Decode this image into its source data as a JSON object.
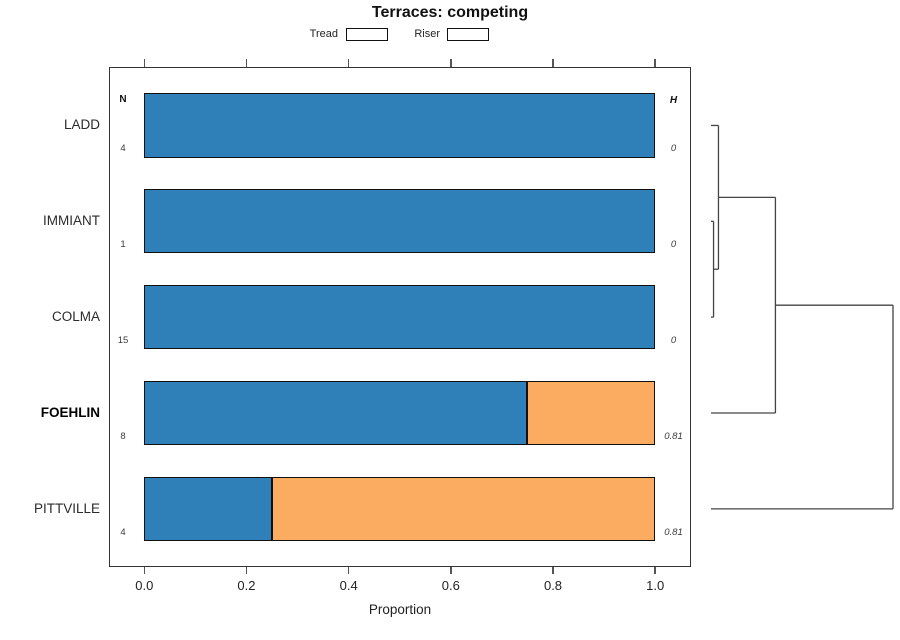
{
  "title": "Terraces: competing",
  "colors": {
    "tread": "#2F80B9",
    "riser": "#FBAC61",
    "bar_border": "#111111",
    "dendrogram_line": "#444444"
  },
  "legend": {
    "items": [
      {
        "label": "Tread",
        "color_key": "tread"
      },
      {
        "label": "Riser",
        "color_key": "riser"
      }
    ]
  },
  "columns": {
    "n_header": "N",
    "h_header": "H"
  },
  "xaxis": {
    "label": "Proportion",
    "ticks": [
      {
        "v": 0.0,
        "label": "0.0"
      },
      {
        "v": 0.2,
        "label": "0.2"
      },
      {
        "v": 0.4,
        "label": "0.4"
      },
      {
        "v": 0.6,
        "label": "0.6"
      },
      {
        "v": 0.8,
        "label": "0.8"
      },
      {
        "v": 1.0,
        "label": "1.0"
      }
    ]
  },
  "chart_data": {
    "type": "bar",
    "variant": "horizontal-stacked-proportion",
    "title": "Terraces: competing",
    "xlabel": "Proportion",
    "xlim": [
      0,
      1
    ],
    "legend_position": "top",
    "categories": [
      "LADD",
      "IMMIANT",
      "COLMA",
      "FOEHLIN",
      "PITTVILLE"
    ],
    "bold_categories": [
      "FOEHLIN"
    ],
    "series": [
      {
        "name": "Tread",
        "values": [
          1.0,
          1.0,
          1.0,
          0.75,
          0.25
        ]
      },
      {
        "name": "Riser",
        "values": [
          0.0,
          0.0,
          0.0,
          0.25,
          0.75
        ]
      }
    ],
    "n_values": [
      "4",
      "1",
      "15",
      "8",
      "4"
    ],
    "h_values": [
      "0",
      "0",
      "0",
      "0.81",
      "0.81"
    ],
    "dendrogram": {
      "side": "right",
      "leaf_order": [
        "LADD",
        "IMMIANT",
        "COLMA",
        "FOEHLIN",
        "PITTVILLE"
      ],
      "merges": [
        {
          "a": "IMMIANT",
          "b": "COLMA",
          "height": 0.014
        },
        {
          "a": "LADD",
          "b": "@0",
          "height": 0.041
        },
        {
          "a": "@1",
          "b": "FOEHLIN",
          "height": 0.354
        },
        {
          "a": "@2",
          "b": "PITTVILLE",
          "height": 1.0
        }
      ]
    }
  }
}
